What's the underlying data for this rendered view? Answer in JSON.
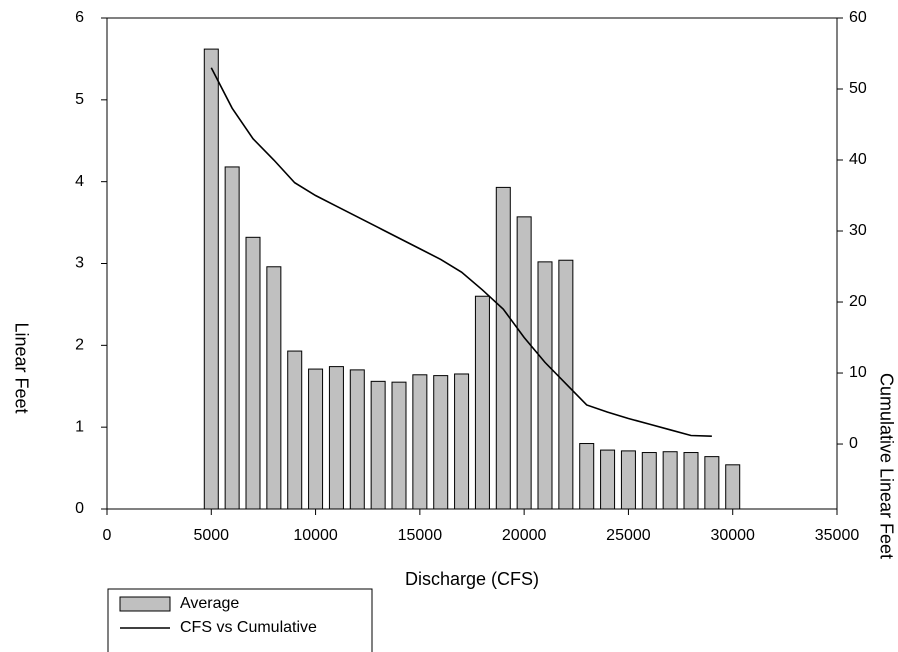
{
  "chart_data": {
    "type": "bar_line",
    "x_label": "Discharge (CFS)",
    "y_label": "Linear Feet",
    "y2_label": "Cumulative Linear Feet",
    "xlim": [
      0,
      35000
    ],
    "xticks": [
      0,
      5000,
      10000,
      15000,
      20000,
      25000,
      30000,
      35000
    ],
    "ylim": [
      0,
      6
    ],
    "yticks": [
      0,
      1,
      2,
      3,
      4,
      5,
      6
    ],
    "y2lim": [
      -9.15,
      60
    ],
    "y2ticks": [
      0,
      10,
      20,
      30,
      40,
      50,
      60
    ],
    "legend": "bottom-left",
    "series": [
      {
        "name": "Average",
        "type": "bar",
        "color": "#c0c0c0",
        "x": [
          5000,
          6000,
          7000,
          8000,
          9000,
          10000,
          11000,
          12000,
          13000,
          14000,
          15000,
          16000,
          17000,
          18000,
          19000,
          20000,
          21000,
          22000,
          23000,
          24000,
          25000,
          26000,
          27000,
          28000,
          29000,
          30000
        ],
        "values": [
          5.62,
          4.18,
          3.32,
          2.96,
          1.93,
          1.71,
          1.74,
          1.7,
          1.56,
          1.55,
          1.64,
          1.63,
          1.65,
          2.6,
          3.93,
          3.57,
          3.02,
          3.04,
          0.8,
          0.72,
          0.71,
          0.69,
          0.7,
          0.69,
          0.64,
          0.54
        ]
      },
      {
        "name": "CFS vs Cumulative",
        "type": "line",
        "color": "#000000",
        "axis": "y2",
        "x": [
          5000,
          6000,
          7000,
          8000,
          9000,
          10000,
          11000,
          12000,
          13000,
          14000,
          15000,
          16000,
          17000,
          18000,
          19000,
          20000,
          21000,
          22000,
          23000,
          24000,
          25000,
          26000,
          27000,
          28000,
          29000
        ],
        "values": [
          53,
          47.3,
          43,
          40,
          36.8,
          35,
          33.5,
          32,
          30.5,
          29,
          27.5,
          26,
          24.2,
          21.7,
          19,
          15,
          11.5,
          8.5,
          5.5,
          4.5,
          3.6,
          2.8,
          2,
          1.2,
          1.1
        ]
      }
    ]
  }
}
